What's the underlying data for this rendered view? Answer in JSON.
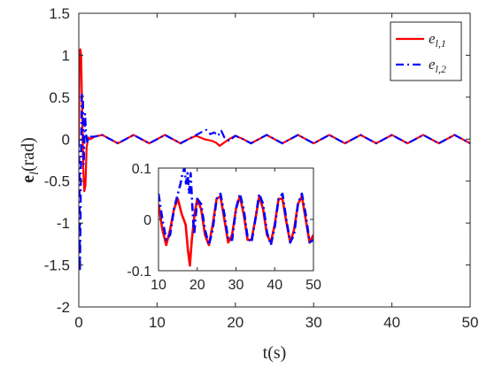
{
  "chart_data": [
    {
      "type": "line",
      "title": "",
      "xlabel": "t(s)",
      "ylabel": "e_l(rad)",
      "ylabel_parts": {
        "symbol": "e",
        "subscript": "l",
        "unit": "(rad)"
      },
      "xlim": [
        0,
        50
      ],
      "ylim": [
        -2,
        1.5
      ],
      "xticks": [
        0,
        10,
        20,
        30,
        40,
        50
      ],
      "xtick_labels": [
        "0",
        "10",
        "20",
        "30",
        "40",
        "50"
      ],
      "yticks": [
        -2,
        -1.5,
        -1,
        -0.5,
        0,
        0.5,
        1,
        1.5
      ],
      "ytick_labels": [
        "-2",
        "-1.5",
        "-1",
        "-0.5",
        "0",
        "0.5",
        "1",
        "1.5"
      ],
      "grid": false,
      "legend_position": "top-right",
      "series": [
        {
          "name": "e_{l,1}",
          "legend_parts": {
            "base": "e",
            "sub": "l,1"
          },
          "color": "#ff0000",
          "style": "solid",
          "points": [
            [
              0,
              0
            ],
            [
              0.12,
              1.05
            ],
            [
              0.2,
              1.07
            ],
            [
              0.3,
              1.0
            ],
            [
              0.4,
              0.5
            ],
            [
              0.55,
              -0.3
            ],
            [
              0.7,
              -0.62
            ],
            [
              0.85,
              -0.55
            ],
            [
              1.0,
              -0.1
            ],
            [
              1.2,
              0.02
            ],
            [
              1.5,
              0
            ],
            [
              2,
              0.03
            ],
            [
              3,
              0.05
            ],
            [
              4,
              0
            ],
            [
              5,
              -0.05
            ],
            [
              6,
              0
            ],
            [
              7,
              0.05
            ],
            [
              8,
              0
            ],
            [
              9,
              -0.05
            ],
            [
              10,
              0
            ],
            [
              11,
              0.05
            ],
            [
              12,
              0
            ],
            [
              13,
              -0.05
            ],
            [
              14,
              0
            ],
            [
              15,
              0.04
            ],
            [
              16,
              0
            ],
            [
              17,
              -0.02
            ],
            [
              17.5,
              -0.04
            ],
            [
              18,
              -0.08
            ],
            [
              18.6,
              -0.04
            ],
            [
              19.2,
              0
            ],
            [
              20,
              0.04
            ],
            [
              21,
              0
            ],
            [
              22,
              -0.05
            ],
            [
              23,
              0
            ],
            [
              24,
              0.05
            ],
            [
              25,
              0
            ],
            [
              26,
              -0.05
            ],
            [
              27,
              0
            ],
            [
              28,
              0.05
            ],
            [
              29,
              0
            ],
            [
              30,
              -0.05
            ],
            [
              31,
              0
            ],
            [
              32,
              0.05
            ],
            [
              33,
              0
            ],
            [
              34,
              -0.05
            ],
            [
              35,
              0
            ],
            [
              36,
              0.05
            ],
            [
              37,
              0
            ],
            [
              38,
              -0.05
            ],
            [
              39,
              0
            ],
            [
              40,
              0.05
            ],
            [
              41,
              0
            ],
            [
              42,
              -0.05
            ],
            [
              43,
              0
            ],
            [
              44,
              0.05
            ],
            [
              45,
              0
            ],
            [
              46,
              -0.05
            ],
            [
              47,
              0
            ],
            [
              48,
              0.05
            ],
            [
              49,
              0
            ],
            [
              50,
              -0.05
            ]
          ]
        },
        {
          "name": "e_{l,2}",
          "legend_parts": {
            "base": "e",
            "sub": "l,2"
          },
          "color": "#0000ff",
          "style": "dashdot",
          "points": [
            [
              0,
              0
            ],
            [
              0.08,
              -0.4
            ],
            [
              0.15,
              -1.58
            ],
            [
              0.22,
              -1.0
            ],
            [
              0.3,
              0.0
            ],
            [
              0.38,
              0.52
            ],
            [
              0.46,
              0.55
            ],
            [
              0.54,
              0.45
            ],
            [
              0.62,
              -0.3
            ],
            [
              0.7,
              -0.1
            ],
            [
              0.8,
              0.3
            ],
            [
              0.95,
              0.05
            ],
            [
              1.1,
              -0.05
            ],
            [
              1.3,
              0.03
            ],
            [
              2,
              0.03
            ],
            [
              3,
              0.05
            ],
            [
              4,
              0
            ],
            [
              5,
              -0.05
            ],
            [
              6,
              0
            ],
            [
              7,
              0.05
            ],
            [
              8,
              0
            ],
            [
              9,
              -0.05
            ],
            [
              10,
              0
            ],
            [
              11,
              0.05
            ],
            [
              12,
              0
            ],
            [
              13,
              -0.05
            ],
            [
              14,
              0
            ],
            [
              15,
              0.05
            ],
            [
              15.8,
              0.09
            ],
            [
              16.3,
              0.11
            ],
            [
              16.8,
              0.06
            ],
            [
              17.3,
              0.08
            ],
            [
              17.8,
              0.04
            ],
            [
              18.2,
              0.1
            ],
            [
              18.6,
              0.02
            ],
            [
              19.2,
              -0.02
            ],
            [
              20,
              0.04
            ],
            [
              21,
              0
            ],
            [
              22,
              -0.05
            ],
            [
              23,
              0
            ],
            [
              24,
              0.05
            ],
            [
              25,
              0
            ],
            [
              26,
              -0.05
            ],
            [
              27,
              0
            ],
            [
              28,
              0.05
            ],
            [
              29,
              0
            ],
            [
              30,
              -0.05
            ],
            [
              31,
              0
            ],
            [
              32,
              0.05
            ],
            [
              33,
              0
            ],
            [
              34,
              -0.05
            ],
            [
              35,
              0
            ],
            [
              36,
              0.05
            ],
            [
              37,
              0
            ],
            [
              38,
              -0.05
            ],
            [
              39,
              0
            ],
            [
              40,
              0.05
            ],
            [
              41,
              0
            ],
            [
              42,
              -0.05
            ],
            [
              43,
              0
            ],
            [
              44,
              0.05
            ],
            [
              45,
              0
            ],
            [
              46,
              -0.05
            ],
            [
              47,
              0
            ],
            [
              48,
              0.05
            ],
            [
              49,
              0
            ],
            [
              50,
              -0.05
            ]
          ]
        }
      ]
    },
    {
      "type": "line",
      "title": "",
      "xlabel": "",
      "ylabel": "",
      "xlim": [
        10,
        50
      ],
      "ylim": [
        -0.1,
        0.1
      ],
      "xticks": [
        10,
        20,
        30,
        40,
        50
      ],
      "xtick_labels": [
        "10",
        "20",
        "30",
        "40",
        "50"
      ],
      "yticks": [
        -0.1,
        0,
        0.1
      ],
      "ytick_labels": [
        "-0.1",
        "0",
        "0.1"
      ],
      "grid": false,
      "series": [
        {
          "color": "#ff0000",
          "style": "solid",
          "points": [
            [
              10,
              0.03
            ],
            [
              11,
              -0.02
            ],
            [
              12,
              -0.05
            ],
            [
              13,
              -0.02
            ],
            [
              14,
              0.02
            ],
            [
              15,
              0.04
            ],
            [
              16,
              0.01
            ],
            [
              17,
              -0.01
            ],
            [
              17.6,
              -0.06
            ],
            [
              18.1,
              -0.09
            ],
            [
              18.6,
              -0.04
            ],
            [
              19.3,
              0.01
            ],
            [
              20,
              0.04
            ],
            [
              21,
              0.02
            ],
            [
              22,
              -0.03
            ],
            [
              23,
              -0.05
            ],
            [
              24,
              -0.01
            ],
            [
              25,
              0.04
            ],
            [
              26,
              0.045
            ],
            [
              27,
              0.0
            ],
            [
              28,
              -0.045
            ],
            [
              29,
              -0.03
            ],
            [
              30,
              0.02
            ],
            [
              31,
              0.045
            ],
            [
              32,
              0.01
            ],
            [
              33,
              -0.04
            ],
            [
              34,
              -0.04
            ],
            [
              35,
              0.0
            ],
            [
              36,
              0.045
            ],
            [
              37,
              0.02
            ],
            [
              38,
              -0.03
            ],
            [
              39,
              -0.045
            ],
            [
              40,
              -0.01
            ],
            [
              41,
              0.04
            ],
            [
              42,
              0.04
            ],
            [
              43,
              -0.005
            ],
            [
              44,
              -0.045
            ],
            [
              45,
              -0.02
            ],
            [
              46,
              0.03
            ],
            [
              47,
              0.045
            ],
            [
              48,
              0.0
            ],
            [
              49,
              -0.045
            ],
            [
              50,
              -0.03
            ]
          ]
        },
        {
          "color": "#0000ff",
          "style": "dashdot",
          "points": [
            [
              10,
              0.05
            ],
            [
              11,
              0.0
            ],
            [
              12,
              -0.04
            ],
            [
              13,
              -0.03
            ],
            [
              14,
              0.02
            ],
            [
              15,
              0.05
            ],
            [
              15.7,
              0.07
            ],
            [
              16.2,
              0.09
            ],
            [
              16.7,
              0.1
            ],
            [
              17.1,
              0.07
            ],
            [
              17.5,
              0.09
            ],
            [
              17.9,
              0.05
            ],
            [
              18.3,
              0.09
            ],
            [
              18.7,
              0.03
            ],
            [
              19.2,
              -0.03
            ],
            [
              20,
              0.04
            ],
            [
              21,
              0.03
            ],
            [
              22,
              -0.02
            ],
            [
              23,
              -0.05
            ],
            [
              24,
              -0.02
            ],
            [
              25,
              0.04
            ],
            [
              26,
              0.05
            ],
            [
              27,
              0.01
            ],
            [
              28,
              -0.04
            ],
            [
              29,
              -0.04
            ],
            [
              30,
              0.02
            ],
            [
              31,
              0.05
            ],
            [
              32,
              0.02
            ],
            [
              33,
              -0.035
            ],
            [
              34,
              -0.045
            ],
            [
              35,
              0.0
            ],
            [
              36,
              0.05
            ],
            [
              37,
              0.03
            ],
            [
              38,
              -0.025
            ],
            [
              39,
              -0.05
            ],
            [
              40,
              -0.015
            ],
            [
              41,
              0.04
            ],
            [
              42,
              0.05
            ],
            [
              43,
              0.0
            ],
            [
              44,
              -0.045
            ],
            [
              45,
              -0.03
            ],
            [
              46,
              0.03
            ],
            [
              47,
              0.05
            ],
            [
              48,
              0.01
            ],
            [
              49,
              -0.045
            ],
            [
              50,
              -0.04
            ]
          ]
        }
      ]
    }
  ]
}
